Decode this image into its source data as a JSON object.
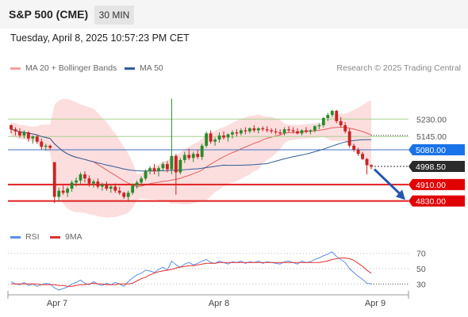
{
  "header": {
    "title": "S&P 500 (CME)",
    "timeframe": "30 MIN",
    "datetime": "Tuesday, April 8, 2025 10:57:23 PM CET"
  },
  "legend": {
    "bollinger": "MA 20 + Bollinger Bands",
    "ma50": "MA 50",
    "research": "Research © 2025 Trading Central",
    "rsi": "RSI",
    "rsi_ma": "9MA"
  },
  "colors": {
    "up": "#2a8a2a",
    "down": "#cc2222",
    "bollinger": "#f5a0a0",
    "ma50": "#2f5c9a",
    "resistance": "#a8d08d",
    "pivot": "#4472c4",
    "support": "#e02020",
    "rsi": "#5b8ee6",
    "rsi_ma": "#e03030"
  },
  "chart_data": {
    "type": "candlestick",
    "ylim": [
      4720,
      5440
    ],
    "x_ticks": [
      "Apr 7",
      "Apr 8",
      "Apr 9"
    ],
    "levels": [
      {
        "label": "5230.00",
        "value": 5230,
        "kind": "resistance"
      },
      {
        "label": "5145.00",
        "value": 5145,
        "kind": "resistance"
      },
      {
        "label": "5080.00",
        "value": 5080,
        "kind": "pivot"
      },
      {
        "label": "4910.00",
        "value": 4910,
        "kind": "support"
      },
      {
        "label": "4830.00",
        "value": 4830,
        "kind": "support"
      }
    ],
    "last_price": {
      "label": "4998.50",
      "value": 4998.5
    },
    "candles": [
      [
        5200,
        5205,
        5160,
        5180
      ],
      [
        5180,
        5190,
        5150,
        5170
      ],
      [
        5170,
        5185,
        5140,
        5150
      ],
      [
        5150,
        5175,
        5135,
        5165
      ],
      [
        5165,
        5170,
        5120,
        5135
      ],
      [
        5135,
        5150,
        5110,
        5145
      ],
      [
        5145,
        5155,
        5110,
        5120
      ],
      [
        5120,
        5135,
        5080,
        5095
      ],
      [
        5095,
        5110,
        5075,
        5100
      ],
      [
        5100,
        5105,
        5080,
        5090
      ],
      [
        5020,
        5020,
        4820,
        4850
      ],
      [
        4850,
        4895,
        4830,
        4880
      ],
      [
        4880,
        4905,
        4860,
        4870
      ],
      [
        4870,
        4900,
        4850,
        4890
      ],
      [
        4890,
        4930,
        4875,
        4920
      ],
      [
        4920,
        4945,
        4900,
        4930
      ],
      [
        4930,
        4970,
        4915,
        4960
      ],
      [
        4960,
        4975,
        4920,
        4940
      ],
      [
        4940,
        4955,
        4900,
        4915
      ],
      [
        4915,
        4935,
        4895,
        4925
      ],
      [
        4925,
        4940,
        4890,
        4900
      ],
      [
        4900,
        4920,
        4880,
        4910
      ],
      [
        4910,
        4925,
        4880,
        4890
      ],
      [
        4890,
        4910,
        4870,
        4900
      ],
      [
        4900,
        4915,
        4870,
        4880
      ],
      [
        4880,
        4900,
        4860,
        4870
      ],
      [
        4870,
        4875,
        4840,
        4850
      ],
      [
        4850,
        4880,
        4830,
        4870
      ],
      [
        4870,
        4915,
        4860,
        4905
      ],
      [
        4905,
        4930,
        4890,
        4920
      ],
      [
        4920,
        4950,
        4910,
        4940
      ],
      [
        4940,
        4985,
        4930,
        4975
      ],
      [
        4975,
        5000,
        4960,
        4990
      ],
      [
        4990,
        5010,
        4960,
        4975
      ],
      [
        4975,
        5000,
        4950,
        4990
      ],
      [
        4990,
        5020,
        4975,
        5010
      ],
      [
        5010,
        5025,
        4970,
        4985
      ],
      [
        4985,
        5330,
        4960,
        5050
      ],
      [
        5050,
        5060,
        4860,
        4970
      ],
      [
        4970,
        5040,
        4960,
        5030
      ],
      [
        5030,
        5070,
        5015,
        5055
      ],
      [
        5055,
        5085,
        5030,
        5040
      ],
      [
        5040,
        5070,
        5020,
        5060
      ],
      [
        5060,
        5080,
        5035,
        5045
      ],
      [
        5045,
        5110,
        5030,
        5100
      ],
      [
        5100,
        5170,
        5090,
        5160
      ],
      [
        5160,
        5175,
        5110,
        5120
      ],
      [
        5120,
        5140,
        5100,
        5130
      ],
      [
        5130,
        5165,
        5115,
        5150
      ],
      [
        5150,
        5170,
        5130,
        5140
      ],
      [
        5140,
        5160,
        5120,
        5155
      ],
      [
        5155,
        5175,
        5135,
        5165
      ],
      [
        5165,
        5180,
        5145,
        5160
      ],
      [
        5160,
        5185,
        5150,
        5175
      ],
      [
        5175,
        5190,
        5155,
        5170
      ],
      [
        5170,
        5190,
        5160,
        5185
      ],
      [
        5185,
        5200,
        5165,
        5175
      ],
      [
        5175,
        5190,
        5160,
        5185
      ],
      [
        5185,
        5195,
        5170,
        5180
      ],
      [
        5180,
        5195,
        5165,
        5175
      ],
      [
        5175,
        5185,
        5160,
        5170
      ],
      [
        5170,
        5185,
        5155,
        5165
      ],
      [
        5165,
        5180,
        5150,
        5160
      ],
      [
        5160,
        5190,
        5150,
        5180
      ],
      [
        5180,
        5195,
        5165,
        5175
      ],
      [
        5175,
        5190,
        5160,
        5170
      ],
      [
        5170,
        5185,
        5155,
        5160
      ],
      [
        5160,
        5180,
        5150,
        5175
      ],
      [
        5175,
        5190,
        5160,
        5168
      ],
      [
        5168,
        5180,
        5155,
        5175
      ],
      [
        5175,
        5200,
        5165,
        5195
      ],
      [
        5195,
        5210,
        5180,
        5200
      ],
      [
        5200,
        5240,
        5190,
        5235
      ],
      [
        5235,
        5260,
        5220,
        5250
      ],
      [
        5250,
        5275,
        5240,
        5270
      ],
      [
        5270,
        5275,
        5210,
        5220
      ],
      [
        5220,
        5240,
        5190,
        5200
      ],
      [
        5200,
        5215,
        5160,
        5170
      ],
      [
        5170,
        5185,
        5090,
        5100
      ],
      [
        5100,
        5110,
        5070,
        5080
      ],
      [
        5080,
        5090,
        5050,
        5060
      ],
      [
        5060,
        5070,
        5030,
        5035
      ],
      [
        5035,
        5040,
        4960,
        5005
      ],
      [
        5005,
        5010,
        4985,
        4998.5
      ]
    ],
    "rsi": {
      "ylim": [
        0,
        100
      ],
      "ticks": [
        "70",
        "50",
        "30"
      ],
      "rsi_values": [
        33,
        30,
        29,
        32,
        28,
        30,
        27,
        29,
        31,
        30,
        25,
        22,
        24,
        26,
        30,
        32,
        35,
        31,
        29,
        33,
        30,
        28,
        31,
        29,
        32,
        30,
        27,
        33,
        38,
        42,
        44,
        48,
        47,
        45,
        49,
        52,
        48,
        60,
        55,
        52,
        56,
        58,
        55,
        57,
        60,
        62,
        58,
        57,
        60,
        58,
        56,
        59,
        58,
        60,
        57,
        59,
        58,
        60,
        57,
        59,
        58,
        57,
        56,
        59,
        60,
        58,
        56,
        60,
        58,
        59,
        62,
        64,
        67,
        69,
        72,
        66,
        62,
        58,
        50,
        45,
        40,
        36,
        31,
        30
      ],
      "ma_values": [
        30,
        30,
        30,
        30,
        30,
        30,
        30,
        29,
        29,
        29,
        29,
        28,
        28,
        27,
        27,
        28,
        29,
        29,
        30,
        31,
        30,
        30,
        29,
        29,
        29,
        30,
        30,
        30,
        31,
        34,
        37,
        39,
        42,
        44,
        46,
        47,
        48,
        49,
        51,
        52,
        53,
        54,
        54,
        55,
        56,
        57,
        57,
        57,
        58,
        58,
        58,
        58,
        58,
        58,
        58,
        58,
        58,
        58,
        58,
        58,
        58,
        58,
        58,
        58,
        58,
        58,
        58,
        58,
        58,
        58,
        58,
        58,
        59,
        60,
        62,
        63,
        64,
        64,
        63,
        61,
        57,
        53,
        48,
        44
      ]
    }
  }
}
